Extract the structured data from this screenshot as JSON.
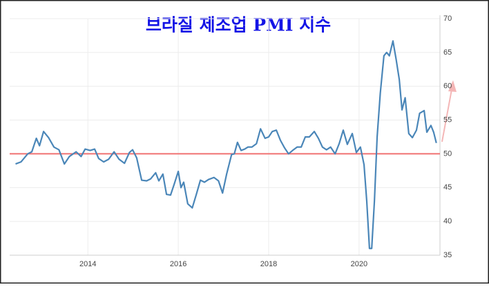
{
  "chart_data": {
    "type": "line",
    "title": "브라질 제조업 PMI 지수",
    "x": [
      2012.4,
      2012.52,
      2012.67,
      2012.76,
      2012.86,
      2012.93,
      2013.02,
      2013.13,
      2013.25,
      2013.36,
      2013.48,
      2013.59,
      2013.74,
      2013.85,
      2013.94,
      2014.05,
      2014.15,
      2014.24,
      2014.35,
      2014.46,
      2014.58,
      2014.69,
      2014.81,
      2014.92,
      2014.99,
      2015.08,
      2015.19,
      2015.3,
      2015.39,
      2015.5,
      2015.57,
      2015.66,
      2015.74,
      2015.83,
      2015.91,
      2016.0,
      2016.06,
      2016.12,
      2016.21,
      2016.31,
      2016.4,
      2016.49,
      2016.58,
      2016.67,
      2016.79,
      2016.89,
      2016.98,
      2017.07,
      2017.18,
      2017.24,
      2017.31,
      2017.39,
      2017.47,
      2017.54,
      2017.63,
      2017.73,
      2017.82,
      2017.92,
      2018.0,
      2018.08,
      2018.17,
      2018.26,
      2018.35,
      2018.44,
      2018.53,
      2018.63,
      2018.72,
      2018.81,
      2018.9,
      2019.01,
      2019.1,
      2019.19,
      2019.28,
      2019.37,
      2019.47,
      2019.56,
      2019.65,
      2019.74,
      2019.85,
      2019.94,
      2020.03,
      2020.11,
      2020.17,
      2020.23,
      2020.28,
      2020.34,
      2020.4,
      2020.47,
      2020.55,
      2020.61,
      2020.67,
      2020.75,
      2020.82,
      2020.89,
      2020.95,
      2021.02,
      2021.1,
      2021.18,
      2021.27,
      2021.34,
      2021.44,
      2021.5,
      2021.59,
      2021.65,
      2021.71
    ],
    "series": [
      {
        "color": "#4a86b8",
        "values": [
          48.5,
          48.8,
          50.0,
          50.3,
          52.3,
          51.2,
          53.3,
          52.4,
          51.0,
          50.6,
          48.5,
          49.6,
          50.3,
          49.6,
          50.7,
          50.5,
          50.7,
          49.3,
          48.8,
          49.2,
          50.3,
          49.2,
          48.6,
          50.2,
          50.6,
          49.4,
          46.1,
          46.0,
          46.3,
          47.2,
          46.0,
          47.0,
          44.0,
          43.9,
          45.5,
          47.4,
          45.0,
          45.8,
          42.6,
          42.0,
          44.0,
          46.1,
          45.8,
          46.2,
          46.5,
          46.0,
          44.2,
          47.0,
          49.9,
          50.0,
          51.7,
          50.5,
          50.7,
          51.0,
          51.0,
          51.5,
          53.7,
          52.3,
          52.5,
          53.3,
          53.5,
          52.0,
          50.9,
          50.0,
          50.5,
          51.0,
          51.0,
          52.5,
          52.5,
          53.3,
          52.3,
          51.0,
          50.6,
          51.0,
          50.0,
          51.5,
          53.5,
          51.4,
          53.0,
          50.2,
          51.0,
          48.4,
          43.0,
          36.0,
          36.0,
          43.0,
          52.5,
          59.0,
          64.5,
          65.0,
          64.5,
          66.7,
          64.0,
          61.0,
          56.5,
          58.3,
          53.0,
          52.4,
          53.5,
          56.0,
          56.4,
          53.2,
          54.2,
          53.2,
          51.6
        ]
      }
    ],
    "xlim": [
      2012.27,
      2021.79
    ],
    "xticks": [
      2014,
      2016,
      2018,
      2020
    ],
    "ylim": [
      35,
      70
    ],
    "yticks": [
      35,
      40,
      45,
      50,
      55,
      60,
      65,
      70
    ],
    "grid": true,
    "reference_line": 50,
    "reference_color": "#f07070"
  }
}
